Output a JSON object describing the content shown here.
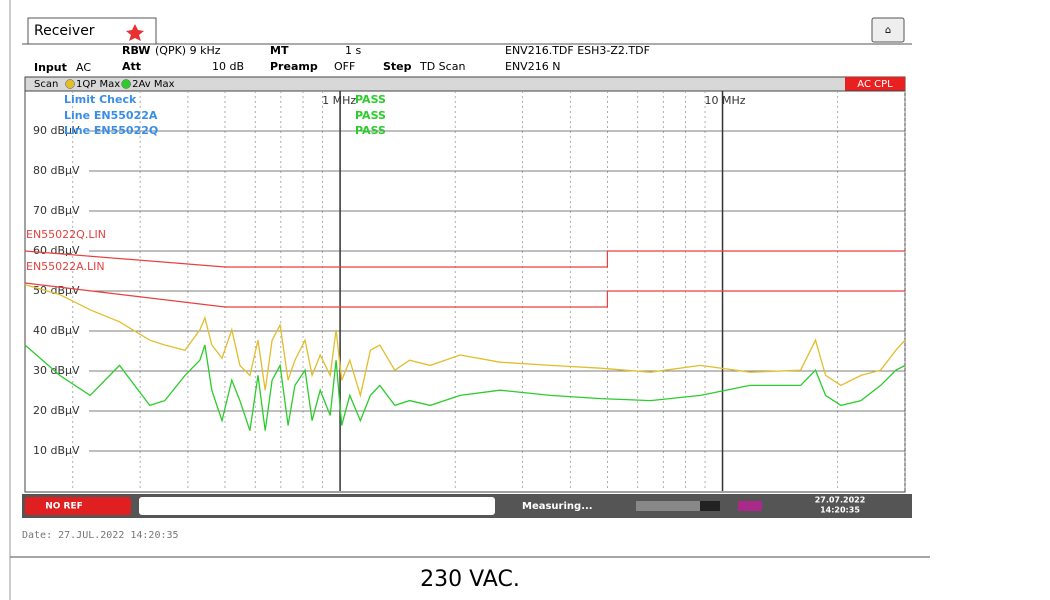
{
  "tab": "Receiver",
  "header": {
    "rbw_label": "RBW",
    "rbw": "(QPK) 9 kHz",
    "mt_label": "MT",
    "mt": "1 s",
    "transducers": "ENV216.TDF ESH3-Z2.TDF",
    "input_label": "Input",
    "input": "AC",
    "att_label": "Att",
    "att": "10 dB",
    "preamp_label": "Preamp",
    "preamp": "OFF",
    "step_label": "Step",
    "step": "TD Scan",
    "lisn": "ENV216 N"
  },
  "scan_label": "Scan",
  "coupling": "AC CPL",
  "chart_data": {
    "type": "line",
    "xscale": "log",
    "xlim": [
      0.15,
      30
    ],
    "ylim": [
      0,
      100
    ],
    "xticks": [
      {
        "value": 1,
        "label": "1 MHz"
      },
      {
        "value": 10,
        "label": "10 MHz"
      }
    ],
    "xminorticks": [
      0.2,
      0.3,
      0.4,
      0.5,
      0.6,
      0.7,
      0.8,
      0.9,
      2,
      3,
      4,
      5,
      6,
      7,
      8,
      9,
      20,
      30
    ],
    "yticks": [
      {
        "value": 10,
        "label": "10 dBµV"
      },
      {
        "value": 20,
        "label": "20 dBµV"
      },
      {
        "value": 30,
        "label": "30 dBµV"
      },
      {
        "value": 40,
        "label": "40 dBµV"
      },
      {
        "value": 50,
        "label": "50 dBµV"
      },
      {
        "value": 60,
        "label": "60 dBµV"
      },
      {
        "value": 70,
        "label": "70 dBµV"
      },
      {
        "value": 80,
        "label": "80 dBµV"
      },
      {
        "value": 90,
        "label": "90 dBµV"
      }
    ],
    "grid": true,
    "x": [
      0.15,
      0.185,
      0.222,
      0.265,
      0.318,
      0.348,
      0.393,
      0.43,
      0.443,
      0.462,
      0.491,
      0.521,
      0.547,
      0.581,
      0.61,
      0.637,
      0.664,
      0.697,
      0.731,
      0.762,
      0.81,
      0.845,
      0.887,
      0.942,
      0.976,
      1.01,
      1.06,
      1.13,
      1.2,
      1.27,
      1.39,
      1.52,
      1.72,
      2.06,
      2.62,
      3.55,
      4.8,
      6.48,
      8.75,
      11.8,
      16.0,
      17.5,
      18.6,
      20.4,
      23.0,
      25.9,
      28.4,
      30
    ],
    "series": [
      {
        "name": "1QP Max",
        "color": "#e2bd2c",
        "values": [
          51.6,
          49.1,
          45.3,
          42.3,
          37.7,
          36.5,
          35.2,
          40.3,
          43.3,
          36.5,
          33.2,
          40.3,
          31.4,
          28.9,
          37.7,
          25.2,
          37.7,
          41.5,
          27.7,
          32.7,
          37.7,
          28.9,
          34.0,
          28.9,
          40.3,
          27.7,
          32.7,
          23.9,
          35.2,
          36.5,
          30.2,
          32.7,
          31.4,
          34.0,
          32.2,
          31.4,
          30.7,
          29.7,
          31.4,
          29.7,
          30.2,
          37.7,
          28.9,
          26.4,
          28.9,
          30.2,
          35.2,
          37.7
        ]
      },
      {
        "name": "2Av Max",
        "color": "#2ccc2c",
        "values": [
          36.5,
          28.9,
          23.9,
          31.4,
          21.4,
          22.6,
          28.9,
          32.7,
          36.5,
          25.2,
          17.6,
          27.7,
          22.6,
          15.1,
          28.9,
          15.1,
          27.7,
          31.4,
          16.4,
          26.4,
          30.2,
          17.6,
          25.2,
          18.9,
          32.7,
          16.4,
          23.9,
          17.6,
          23.9,
          26.4,
          21.4,
          22.6,
          21.4,
          23.9,
          25.2,
          23.9,
          23.1,
          22.6,
          23.9,
          26.4,
          26.4,
          30.2,
          23.9,
          21.4,
          22.6,
          26.4,
          30.2,
          31.4
        ]
      }
    ],
    "limit_lines": [
      {
        "name": "EN55022Q.LIN",
        "color": "#e84040",
        "x": [
          0.15,
          0.5,
          5,
          5,
          30
        ],
        "values": [
          60,
          56,
          56,
          60,
          60
        ]
      },
      {
        "name": "EN55022A.LIN",
        "color": "#e84040",
        "x": [
          0.15,
          0.5,
          5,
          5,
          30
        ],
        "values": [
          52,
          46,
          46,
          50,
          50
        ]
      }
    ],
    "limit_check": {
      "title": "Limit Check",
      "result": "PASS",
      "lines": [
        {
          "name": "Line EN55022A",
          "result": "PASS"
        },
        {
          "name": "Line EN55022Q",
          "result": "PASS"
        }
      ]
    }
  },
  "status_bar": {
    "ref": "NO REF",
    "state": "Measuring...",
    "date": "27.07.2022",
    "time": "14:20:35"
  },
  "date_line": "Date: 27.JUL.2022  14:20:35",
  "caption": "230 VAC."
}
